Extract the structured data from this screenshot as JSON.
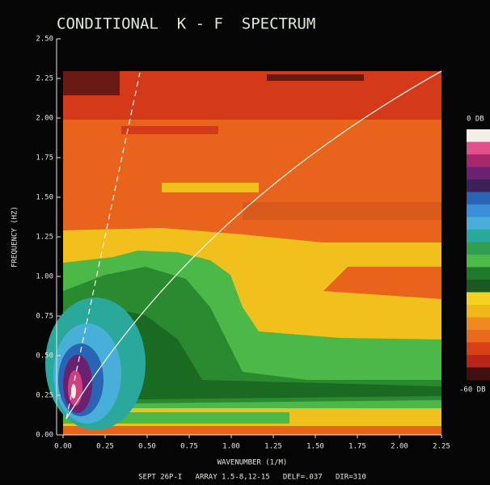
{
  "chart_data": {
    "type": "contour",
    "title": "CONDITIONAL  K - F  SPECTRUM",
    "x_label": "WAVENUMBER (1/M)",
    "y_label": "FREQUENCY (HZ)",
    "footer": "SEPT 26P-I   ARRAY 1.5-8,12-15   DELF=.037   DIR=310",
    "xlim": [
      0,
      2.25
    ],
    "ylim": [
      0,
      2.5
    ],
    "xticks": [
      {
        "value": 0,
        "label": "0.00"
      },
      {
        "value": 0.25,
        "label": "0.25"
      },
      {
        "value": 0.5,
        "label": "0.50"
      },
      {
        "value": 0.75,
        "label": "0.75"
      },
      {
        "value": 1,
        "label": "1.00"
      },
      {
        "value": 1.25,
        "label": "1.25"
      },
      {
        "value": 1.5,
        "label": "1.50"
      },
      {
        "value": 1.75,
        "label": "1.75"
      },
      {
        "value": 2,
        "label": "2.00"
      },
      {
        "value": 2.25,
        "label": "2.25"
      }
    ],
    "yticks": [
      {
        "value": 0,
        "label": "0.00"
      },
      {
        "value": 0.25,
        "label": "0.25"
      },
      {
        "value": 0.5,
        "label": "0.50"
      },
      {
        "value": 0.75,
        "label": "0.75"
      },
      {
        "value": 1,
        "label": "1.00"
      },
      {
        "value": 1.25,
        "label": "1.25"
      },
      {
        "value": 1.5,
        "label": "1.50"
      },
      {
        "value": 1.75,
        "label": "1.75"
      },
      {
        "value": 2,
        "label": "2.00"
      },
      {
        "value": 2.25,
        "label": "2.25"
      },
      {
        "value": 2.5,
        "label": "2.50"
      }
    ],
    "colorbar": {
      "top_label": "0 DB",
      "bottom_label": "-60 DB",
      "colors": [
        "#f4eee8",
        "#e0508a",
        "#a8286e",
        "#6a2270",
        "#3c2058",
        "#2a64b4",
        "#3a8ed8",
        "#48b0d8",
        "#2aa89c",
        "#30a050",
        "#4cba48",
        "#1e7a2a",
        "#1a5a22",
        "#f4d020",
        "#f0b818",
        "#f08a20",
        "#e86a1c",
        "#d8401a",
        "#b82418",
        "#401010"
      ]
    }
  }
}
